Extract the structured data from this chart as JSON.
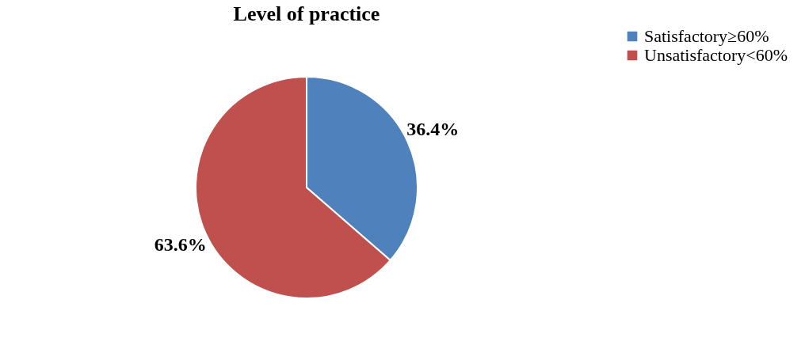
{
  "chart_data": {
    "type": "pie",
    "title": "Level of practice",
    "categories": [
      "Satisfactory≥60%",
      "Unsatisfactory<60%"
    ],
    "values": [
      36.4,
      63.6
    ],
    "colors": [
      "#4f81bd",
      "#c0504d"
    ],
    "value_labels": [
      "36.4%",
      "63.6%"
    ],
    "legend": "right"
  }
}
